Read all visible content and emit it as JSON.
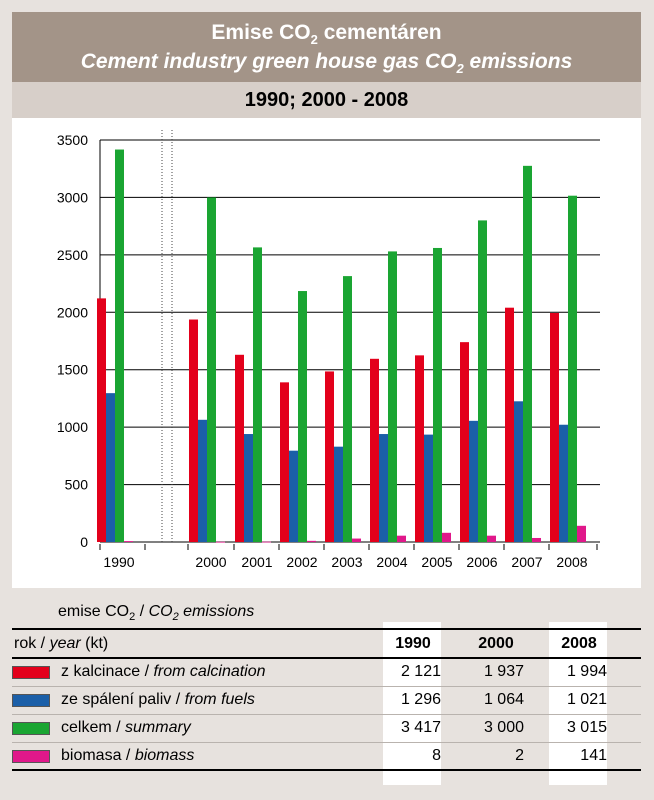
{
  "header": {
    "title_cz_prefix": "Emise CO",
    "title_cz_sub": "2",
    "title_cz_suffix": " cementáren",
    "title_en_prefix": "Cement industry green house gas CO",
    "title_en_sub": "2",
    "title_en_suffix": " emissions",
    "subtitle": "1990; 2000 - 2008"
  },
  "chart_data": {
    "type": "bar",
    "categories": [
      "1990",
      "2000",
      "2001",
      "2002",
      "2003",
      "2004",
      "2005",
      "2006",
      "2007",
      "2008"
    ],
    "series": [
      {
        "name": "z kalcinace / from calcination",
        "color": "#e3001b",
        "values": [
          2121,
          1937,
          1630,
          1390,
          1485,
          1595,
          1625,
          1740,
          2040,
          1994
        ]
      },
      {
        "name": "ze spálení paliv / from fuels",
        "color": "#1b5fa8",
        "values": [
          1296,
          1064,
          940,
          795,
          830,
          940,
          935,
          1055,
          1225,
          1021
        ]
      },
      {
        "name": "celkem / summary",
        "color": "#1aa532",
        "values": [
          3417,
          3000,
          2565,
          2185,
          2315,
          2530,
          2560,
          2800,
          3275,
          3015
        ]
      },
      {
        "name": "biomasa / biomass",
        "color": "#e0188a",
        "values": [
          8,
          2,
          3,
          10,
          30,
          55,
          80,
          55,
          35,
          141
        ]
      }
    ],
    "yticks": [
      "0",
      "500",
      "1000",
      "1500",
      "2000",
      "2500",
      "3000",
      "3500"
    ],
    "ylim": [
      0,
      3500
    ],
    "grid": true,
    "legend": "table below chart"
  },
  "table": {
    "caption_prefix": "emise CO",
    "caption_sub": "2",
    "caption_mid": " / ",
    "caption_italic_prefix": "CO",
    "caption_italic_sub": "2",
    "caption_italic_suffix": " emissions",
    "head_label_regular": "rok / ",
    "head_label_italic": "year",
    "head_label_unit": "  (kt)",
    "years": [
      "1990",
      "2000",
      "2008"
    ],
    "rows": [
      {
        "label": "z kalcinace / ",
        "label_en": "from calcination",
        "color": "#e3001b",
        "values": [
          "2 121",
          "1 937",
          "1 994"
        ]
      },
      {
        "label": "ze spálení paliv / ",
        "label_en": "from fuels",
        "color": "#1b5fa8",
        "values": [
          "1 296",
          "1 064",
          "1 021"
        ]
      },
      {
        "label": "celkem / ",
        "label_en": "summary",
        "color": "#1aa532",
        "values": [
          "3 417",
          "3 000",
          "3 015"
        ]
      },
      {
        "label": "biomasa / ",
        "label_en": "biomass",
        "color": "#e0188a",
        "values": [
          "8",
          "2",
          "141"
        ]
      }
    ]
  }
}
